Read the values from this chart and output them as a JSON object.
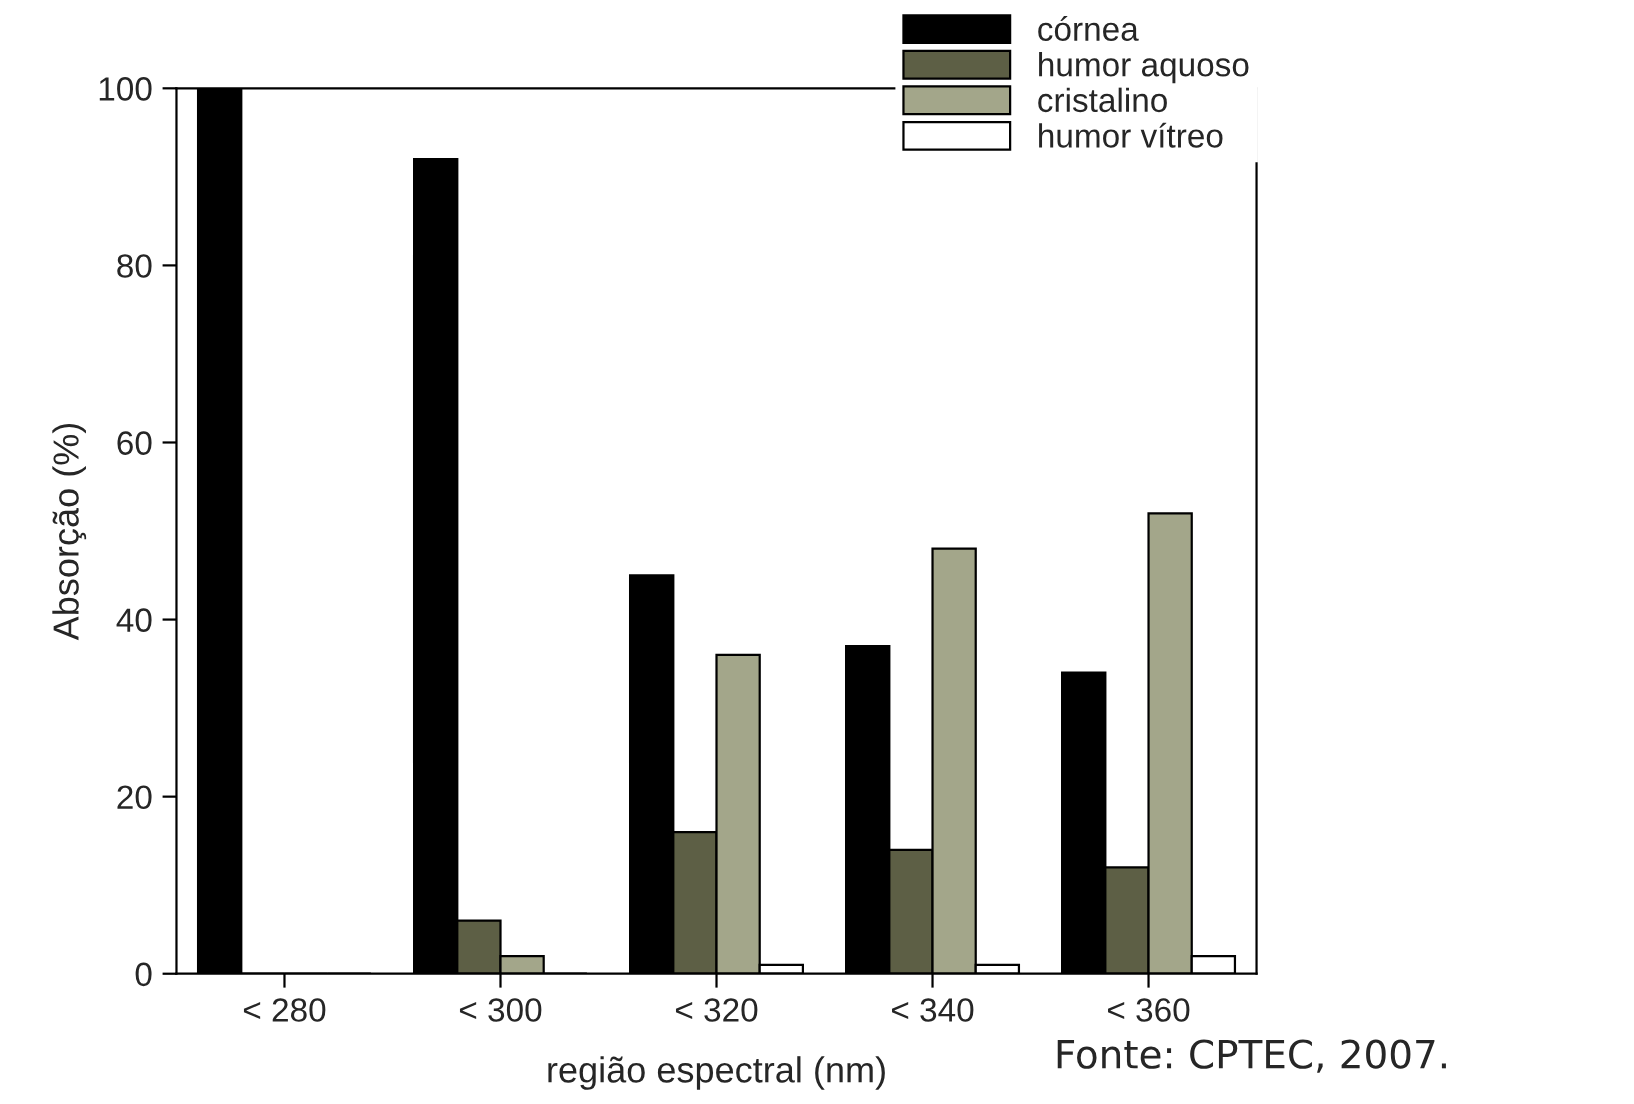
{
  "chart_data": {
    "type": "bar",
    "categories": [
      "< 280",
      "< 300",
      "< 320",
      "< 340",
      "< 360"
    ],
    "series": [
      {
        "name": "córnea",
        "color": "#000000",
        "values": [
          100,
          92,
          45,
          37,
          34
        ]
      },
      {
        "name": "humor aquoso",
        "color": "#5d5f45",
        "values": [
          0,
          6,
          16,
          14,
          12
        ]
      },
      {
        "name": "cristalino",
        "color": "#a3a68a",
        "values": [
          0,
          2,
          36,
          48,
          52
        ]
      },
      {
        "name": "humor vítreo",
        "color": "#ffffff",
        "values": [
          0,
          0,
          1,
          1,
          2
        ]
      }
    ],
    "xlabel": "região espectral (nm)",
    "ylabel": "Absorção (%)",
    "ylim": [
      0,
      100
    ],
    "yticks": [
      0,
      20,
      40,
      60,
      80,
      100
    ],
    "legend": "top right",
    "grid": false,
    "annotations": [
      "Fonte: CPTEC, 2007."
    ]
  }
}
